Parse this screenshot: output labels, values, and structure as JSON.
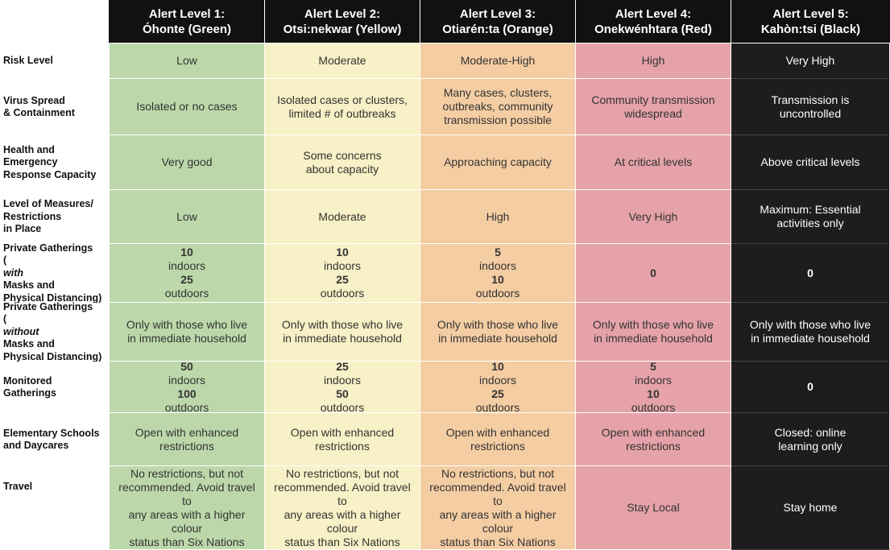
{
  "header": {
    "levels": [
      {
        "line1": "Alert Level 1:",
        "line2": "Óhonte (Green)",
        "color": "#bcd8aa"
      },
      {
        "line1": "Alert Level 2:",
        "line2": "Otsi:nekwar (Yellow)",
        "color": "#f8f0c6"
      },
      {
        "line1": "Alert Level 3:",
        "line2": "Otiarén:ta (Orange)",
        "color": "#f4cda3"
      },
      {
        "line1": "Alert Level 4:",
        "line2": "Onekwénhtara (Red)",
        "color": "#e5a2a8"
      },
      {
        "line1": "Alert Level 5:",
        "line2": "Kahòn:tsi (Black)",
        "color": "#1e1c1c"
      }
    ]
  },
  "rows": {
    "risk": {
      "label": "Risk Level",
      "values": [
        "Low",
        "Moderate",
        "Moderate-High",
        "High",
        "Very High"
      ]
    },
    "spread": {
      "label_a": "Virus Spread",
      "label_b": "& Containment",
      "values": [
        [
          "Isolated or no cases"
        ],
        [
          "Isolated cases or clusters,",
          "limited # of outbreaks"
        ],
        [
          "Many cases, clusters,",
          "outbreaks, community",
          "transmission possible"
        ],
        [
          "Community transmission",
          "widespread"
        ],
        [
          "Transmission is",
          "uncontrolled"
        ]
      ]
    },
    "health": {
      "label_a": "Health and",
      "label_b": "Emergency",
      "label_c": "Response Capacity",
      "values": [
        [
          "Very good"
        ],
        [
          "Some concerns",
          "about capacity"
        ],
        [
          "Approaching capacity"
        ],
        [
          "At critical levels"
        ],
        [
          "Above critical levels"
        ]
      ]
    },
    "measures": {
      "label_a": "Level of Measures/",
      "label_b": "Restrictions",
      "label_c": "in Place",
      "values": [
        [
          "Low"
        ],
        [
          "Moderate"
        ],
        [
          "High"
        ],
        [
          "Very High"
        ],
        [
          "Maximum: Essential",
          "activities only"
        ]
      ]
    },
    "private_with": {
      "label_a": "Private Gatherings",
      "label_b_open": "(",
      "label_b_italic": "with",
      "label_b_rest": " Masks and",
      "label_c": "Physical Distancing)",
      "indoors_word": " indoors",
      "outdoors_word": " outdoors",
      "values": [
        {
          "indoors": "10",
          "outdoors": "25"
        },
        {
          "indoors": "10",
          "outdoors": "25"
        },
        {
          "indoors": "5",
          "outdoors": "10"
        },
        {
          "single": "0"
        },
        {
          "single": "0"
        }
      ]
    },
    "private_without": {
      "label_a": "Private Gatherings",
      "label_b_open": "(",
      "label_b_italic": "without",
      "label_b_rest": " Masks and",
      "label_c": "Physical Distancing)",
      "values": [
        [
          "Only with those who live",
          "in immediate household"
        ],
        [
          "Only with those who live",
          "in immediate household"
        ],
        [
          "Only with those who live",
          "in immediate household"
        ],
        [
          "Only with those who live",
          "in immediate household"
        ],
        [
          "Only with those who live",
          "in immediate household"
        ]
      ]
    },
    "monitored": {
      "label_a": "Monitored",
      "label_b": "Gatherings",
      "values": [
        {
          "indoors": "50",
          "outdoors": "100"
        },
        {
          "indoors": "25",
          "outdoors": "50"
        },
        {
          "indoors": "10",
          "outdoors": "25"
        },
        {
          "indoors": "5",
          "outdoors": "10"
        },
        {
          "single": "0"
        }
      ]
    },
    "schools": {
      "label_a": "Elementary Schools",
      "label_b": "and Daycares",
      "values": [
        [
          "Open with enhanced",
          "restrictions"
        ],
        [
          "Open with enhanced",
          "restrictions"
        ],
        [
          "Open with enhanced",
          "restrictions"
        ],
        [
          "Open with enhanced",
          "restrictions"
        ],
        [
          "Closed: online",
          "learning only"
        ]
      ]
    },
    "travel": {
      "label": "Travel",
      "values": [
        [
          "No restrictions, but not",
          "recommended. Avoid travel to",
          "any areas with a higher colour",
          "status than Six Nations"
        ],
        [
          "No restrictions, but not",
          "recommended. Avoid travel to",
          "any areas with a higher colour",
          "status than Six Nations"
        ],
        [
          "No restrictions, but not",
          "recommended. Avoid travel to",
          "any areas with a higher colour",
          "status than Six Nations"
        ],
        [
          "Stay Local"
        ],
        [
          "Stay home"
        ]
      ]
    }
  }
}
